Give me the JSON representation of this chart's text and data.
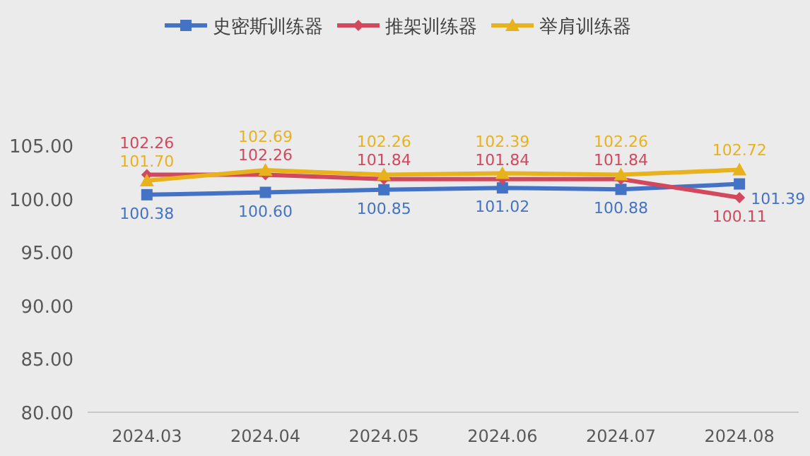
{
  "chart_data": {
    "type": "line",
    "categories": [
      "2024.03",
      "2024.04",
      "2024.05",
      "2024.06",
      "2024.07",
      "2024.08"
    ],
    "series": [
      {
        "name": "史密斯训练器",
        "color": "#4472c4",
        "marker": "square",
        "values": [
          100.38,
          100.6,
          100.85,
          101.02,
          100.88,
          101.39
        ],
        "value_labels": [
          "100.38",
          "100.60",
          "100.85",
          "101.02",
          "100.88",
          "101.39"
        ]
      },
      {
        "name": "推架训练器",
        "color": "#d2485c",
        "marker": "diamond",
        "values": [
          102.26,
          102.26,
          101.84,
          101.84,
          101.84,
          100.11
        ],
        "value_labels": [
          "102.26",
          "102.26",
          "101.84",
          "101.84",
          "101.84",
          "100.11"
        ]
      },
      {
        "name": "举肩训练器",
        "color": "#e8b21c",
        "marker": "triangle",
        "values": [
          101.7,
          102.69,
          102.26,
          102.39,
          102.26,
          102.72
        ],
        "value_labels": [
          "101.70",
          "102.69",
          "102.26",
          "102.39",
          "102.26",
          "102.72"
        ]
      }
    ],
    "ylim": [
      80,
      105
    ],
    "yticks": [
      {
        "value": 80,
        "label": "80.00"
      },
      {
        "value": 85,
        "label": "85.00"
      },
      {
        "value": 90,
        "label": "90.00"
      },
      {
        "value": 95,
        "label": "95.00"
      },
      {
        "value": 100,
        "label": "100.00"
      },
      {
        "value": 105,
        "label": "105.00"
      }
    ],
    "grid": false,
    "legend": "top",
    "line_style": "solid"
  }
}
